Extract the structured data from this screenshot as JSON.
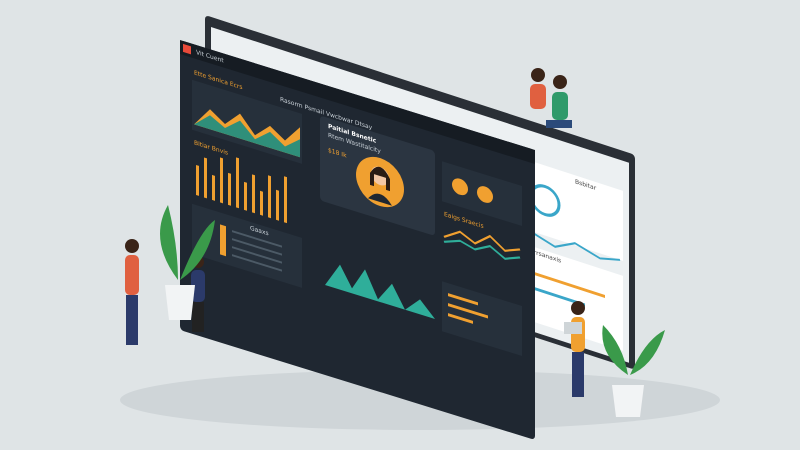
{
  "header": {
    "app": "Vit Cuent",
    "tab": "Ette Sanica Ecrs",
    "toolbar": "Rasorm Psmail Vwcbwar Dtsay"
  },
  "profile": {
    "name": "Paitial Bsnetic",
    "role": "Rtem Wastitalcity",
    "stat": "$18 Ik"
  },
  "panels": {
    "bars": "Bltiar Bnvis",
    "table": "Gaaxs",
    "side": "Eaigs Sraecis"
  },
  "back": {
    "title": "Roxd Dyrrsanaxis",
    "side": "Bsbitar"
  }
}
